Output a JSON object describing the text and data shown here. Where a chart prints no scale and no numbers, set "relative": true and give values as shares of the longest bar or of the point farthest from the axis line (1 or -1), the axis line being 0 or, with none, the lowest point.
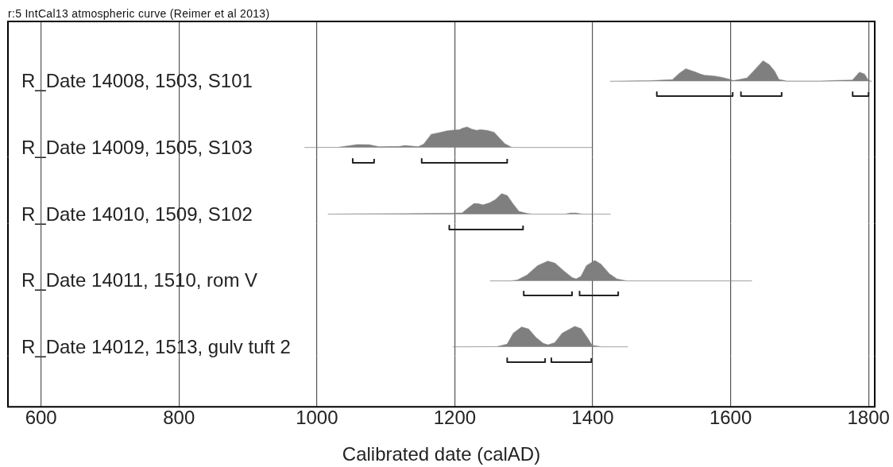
{
  "chart_data": [
    {
      "type": "area",
      "title": "R_Date 14008, 1503, S101",
      "annotations": [
        "r:5 IntCal13 atmospheric curve (Reimer et al 2013)"
      ],
      "relative": true,
      "color": "#7f7f7f",
      "x": [
        1425,
        1485,
        1516,
        1526,
        1535,
        1549,
        1556,
        1562,
        1577,
        1587,
        1599,
        1604,
        1612,
        1624,
        1633,
        1647,
        1656,
        1664,
        1670,
        1681,
        1731,
        1754,
        1777,
        1787,
        1794,
        1800,
        1805
      ],
      "values": [
        0,
        0.03,
        0.08,
        0.39,
        0.61,
        0.45,
        0.35,
        0.29,
        0.25,
        0.19,
        0.09,
        0.03,
        0.08,
        0.16,
        0.48,
        1,
        0.81,
        0.48,
        0.09,
        0.01,
        0.01,
        0.04,
        0.06,
        0.44,
        0.35,
        0.03,
        0
      ],
      "xlim": [
        552,
        1809
      ],
      "xticks": [
        600,
        800,
        1000,
        1200,
        1400,
        1600,
        1800
      ],
      "grid": "x",
      "tick_labels": false
    },
    {
      "type": "line",
      "relative": true,
      "series": [
        {
          "color": "#222222",
          "x": [
            1493,
            1493,
            1603,
            1603
          ],
          "values": [
            1,
            0,
            0,
            1
          ]
        },
        {
          "color": "#222222",
          "x": [
            1615,
            1615,
            1674,
            1674
          ],
          "values": [
            1,
            0,
            0,
            1
          ]
        },
        {
          "color": "#222222",
          "x": [
            1777,
            1777,
            1800,
            1800
          ],
          "values": [
            1,
            0,
            0,
            1
          ]
        }
      ],
      "xlim": [
        552,
        1809
      ],
      "xticks": [
        600,
        800,
        1000,
        1200,
        1400,
        1600,
        1800
      ],
      "grid": "x",
      "tick_labels": false
    },
    {
      "type": "area",
      "title": "R_Date 14009, 1505, S103",
      "relative": true,
      "color": "#7f7f7f",
      "x": [
        982,
        1032,
        1049,
        1059,
        1076,
        1090,
        1120,
        1128,
        1138,
        1147,
        1155,
        1166,
        1176,
        1189,
        1197,
        1207,
        1212,
        1218,
        1224,
        1232,
        1237,
        1247,
        1257,
        1264,
        1272,
        1282,
        1293,
        1400
      ],
      "values": [
        0,
        0.01,
        0.09,
        0.14,
        0.13,
        0.03,
        0.05,
        0.09,
        0.06,
        0.03,
        0.16,
        0.64,
        0.71,
        0.81,
        0.84,
        0.87,
        0.95,
        1,
        0.9,
        0.83,
        0.87,
        0.83,
        0.74,
        0.48,
        0.19,
        0.01,
        0,
        0
      ],
      "xlim": [
        552,
        1809
      ],
      "xticks": [
        600,
        800,
        1000,
        1200,
        1400,
        1600,
        1800
      ],
      "grid": "x",
      "tick_labels": false
    },
    {
      "type": "line",
      "relative": true,
      "series": [
        {
          "color": "#222222",
          "x": [
            1052,
            1052,
            1083,
            1083
          ],
          "values": [
            1,
            0,
            0,
            1
          ]
        },
        {
          "color": "#222222",
          "x": [
            1152,
            1152,
            1276,
            1276
          ],
          "values": [
            1,
            0,
            0,
            1
          ]
        }
      ],
      "xlim": [
        552,
        1809
      ],
      "xticks": [
        600,
        800,
        1000,
        1200,
        1400,
        1600,
        1800
      ],
      "grid": "x",
      "tick_labels": false
    },
    {
      "type": "area",
      "title": "R_Date 14010, 1509, S102",
      "relative": true,
      "color": "#7f7f7f",
      "x": [
        1016,
        1163,
        1197,
        1211,
        1218,
        1228,
        1234,
        1241,
        1251,
        1259,
        1268,
        1276,
        1284,
        1293,
        1305,
        1312,
        1360,
        1368,
        1376,
        1385,
        1426
      ],
      "values": [
        0,
        0.03,
        0.04,
        0.06,
        0.26,
        0.52,
        0.51,
        0.45,
        0.56,
        0.71,
        1,
        0.91,
        0.52,
        0.13,
        0.03,
        0,
        0,
        0.05,
        0.05,
        0,
        0
      ],
      "xlim": [
        552,
        1809
      ],
      "xticks": [
        600,
        800,
        1000,
        1200,
        1400,
        1600,
        1800
      ],
      "grid": "x",
      "tick_labels": false
    },
    {
      "type": "line",
      "relative": true,
      "series": [
        {
          "color": "#222222",
          "x": [
            1192,
            1192,
            1299,
            1299
          ],
          "values": [
            1,
            0,
            0,
            1
          ]
        }
      ],
      "xlim": [
        552,
        1809
      ],
      "xticks": [
        600,
        800,
        1000,
        1200,
        1400,
        1600,
        1800
      ],
      "grid": "x",
      "tick_labels": false
    },
    {
      "type": "area",
      "title": "R_Date 14011, 1510, rom V",
      "relative": true,
      "color": "#7f7f7f",
      "x": [
        1251,
        1282,
        1291,
        1305,
        1320,
        1335,
        1345,
        1358,
        1370,
        1376,
        1383,
        1391,
        1403,
        1412,
        1424,
        1435,
        1449,
        1631
      ],
      "values": [
        0,
        0,
        0.04,
        0.29,
        0.74,
        0.97,
        0.87,
        0.48,
        0.16,
        0.09,
        0.22,
        0.74,
        1,
        0.81,
        0.35,
        0.09,
        0,
        0
      ],
      "xlim": [
        552,
        1809
      ],
      "xticks": [
        600,
        800,
        1000,
        1200,
        1400,
        1600,
        1800
      ],
      "grid": "x",
      "tick_labels": false
    },
    {
      "type": "line",
      "relative": true,
      "series": [
        {
          "color": "#222222",
          "x": [
            1300,
            1300,
            1370,
            1370
          ],
          "values": [
            1,
            0,
            0,
            1
          ]
        },
        {
          "color": "#222222",
          "x": [
            1381,
            1381,
            1437,
            1437
          ],
          "values": [
            1,
            0,
            0,
            1
          ]
        }
      ],
      "xlim": [
        552,
        1809
      ],
      "xticks": [
        600,
        800,
        1000,
        1200,
        1400,
        1600,
        1800
      ],
      "grid": "x",
      "tick_labels": false
    },
    {
      "type": "area",
      "title": "R_Date 14012, 1513, gulv tuft 2",
      "relative": true,
      "color": "#7f7f7f",
      "x": [
        1197,
        1262,
        1276,
        1285,
        1297,
        1307,
        1318,
        1328,
        1335,
        1345,
        1356,
        1374,
        1383,
        1393,
        1399,
        1412,
        1451
      ],
      "values": [
        0,
        0.01,
        0.13,
        0.67,
        0.97,
        0.87,
        0.44,
        0.17,
        0.09,
        0.2,
        0.67,
        1,
        0.89,
        0.4,
        0.07,
        0,
        0
      ],
      "xlim": [
        552,
        1809
      ],
      "xticks": [
        600,
        800,
        1000,
        1200,
        1400,
        1600,
        1800
      ],
      "grid": "x",
      "tick_labels": false
    },
    {
      "type": "line",
      "relative": true,
      "series": [
        {
          "color": "#222222",
          "x": [
            1276,
            1276,
            1331,
            1331
          ],
          "values": [
            1,
            0,
            0,
            1
          ]
        },
        {
          "color": "#222222",
          "x": [
            1340,
            1340,
            1398,
            1398
          ],
          "values": [
            1,
            0,
            0,
            1
          ]
        }
      ],
      "xlim": [
        552,
        1809
      ],
      "xticks": [
        600,
        800,
        1000,
        1200,
        1400,
        1600,
        1800
      ],
      "xlabel": "Calibrated date (calAD)",
      "grid": "x",
      "tick_labels": "x"
    }
  ]
}
